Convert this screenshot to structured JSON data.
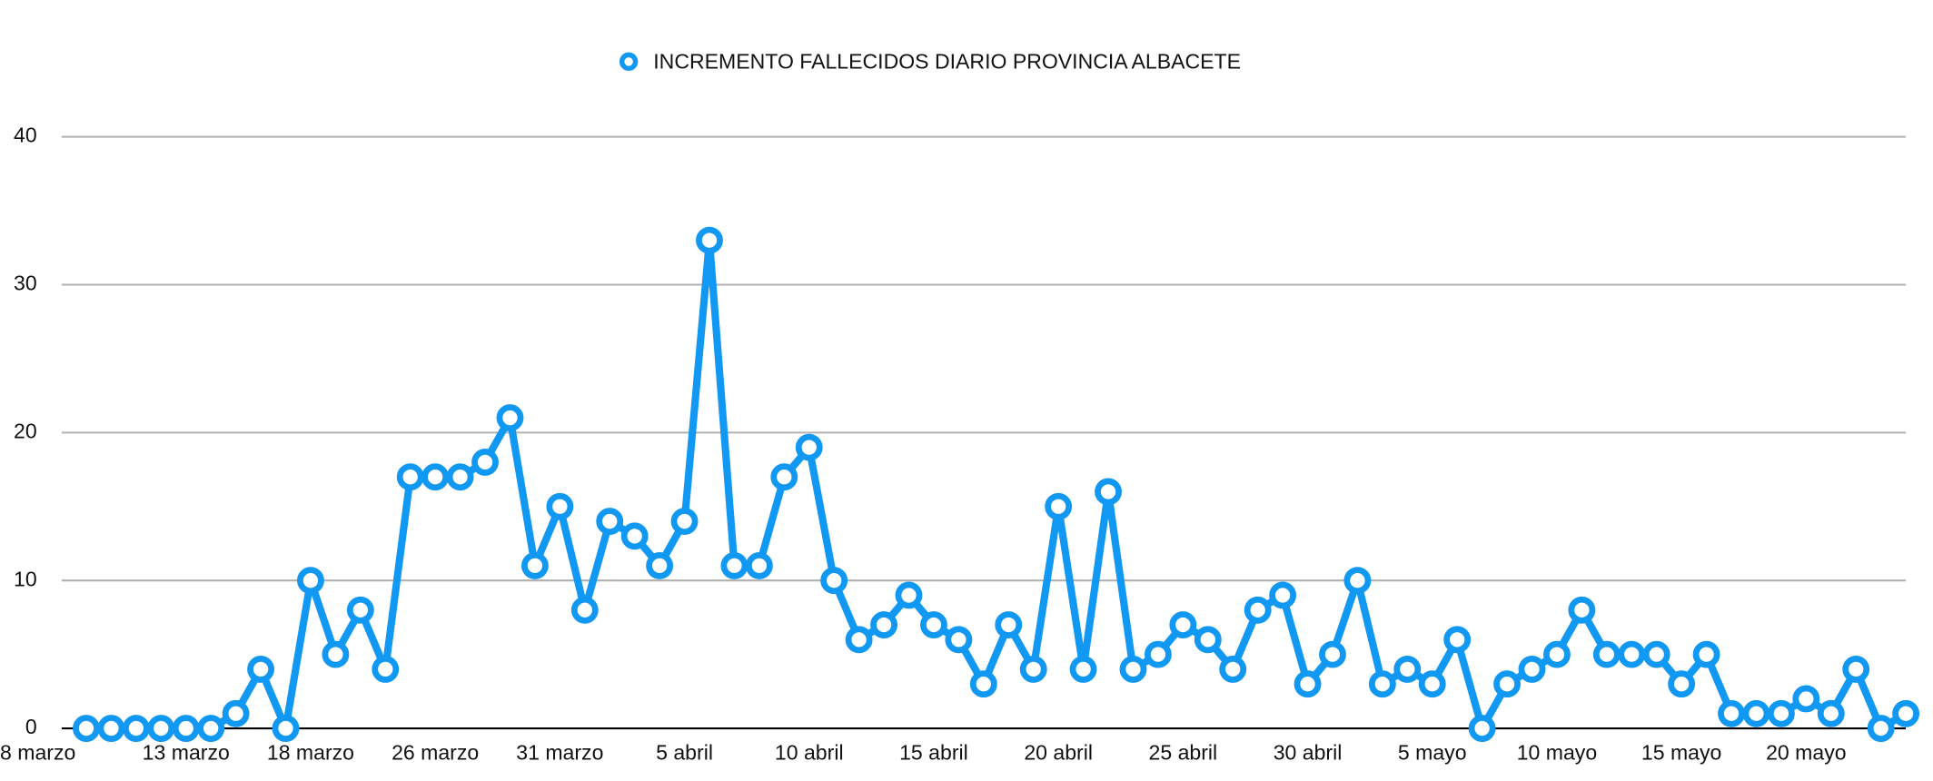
{
  "chart_data": {
    "type": "line",
    "categories": [
      "8 marzo",
      null,
      null,
      null,
      "13 marzo",
      null,
      null,
      null,
      null,
      "18 marzo",
      null,
      null,
      null,
      null,
      "26 marzo",
      null,
      null,
      null,
      null,
      "31 marzo",
      null,
      null,
      null,
      null,
      "5 abril",
      null,
      null,
      null,
      null,
      "10 abril",
      null,
      null,
      null,
      null,
      "15 abril",
      null,
      null,
      null,
      null,
      "20 abril",
      null,
      null,
      null,
      null,
      "25 abril",
      null,
      null,
      null,
      null,
      "30 abril",
      null,
      null,
      null,
      null,
      "5 mayo",
      null,
      null,
      null,
      null,
      "10 mayo",
      null,
      null,
      null,
      null,
      "15 mayo",
      null,
      null,
      null,
      null,
      "20 mayo",
      null,
      null,
      null,
      null
    ],
    "series": [
      {
        "name": "INCREMENTO FALLECIDOS DIARIO PROVINCIA ALBACETE",
        "color": "#1198f2",
        "values": [
          0,
          0,
          0,
          0,
          0,
          0,
          1,
          4,
          0,
          10,
          5,
          8,
          4,
          17,
          17,
          17,
          18,
          21,
          11,
          15,
          8,
          14,
          13,
          11,
          14,
          33,
          11,
          11,
          17,
          19,
          10,
          6,
          7,
          9,
          7,
          6,
          3,
          7,
          4,
          15,
          4,
          16,
          4,
          5,
          7,
          6,
          4,
          8,
          9,
          3,
          5,
          10,
          3,
          4,
          3,
          6,
          0,
          3,
          4,
          5,
          8,
          5,
          5,
          5,
          3,
          5,
          1,
          1,
          1,
          2,
          1,
          4,
          0,
          1
        ]
      }
    ],
    "ylim": [
      0,
      40
    ],
    "yticks": [
      0,
      10,
      20,
      30,
      40
    ],
    "grid": true,
    "legend": "top"
  }
}
